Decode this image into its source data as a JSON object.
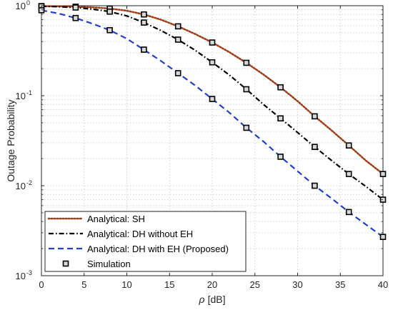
{
  "chart_data": {
    "type": "line",
    "title": "",
    "xlabel_symbol": "ρ",
    "xlabel_unit": "[dB]",
    "ylabel": "Outage Probability",
    "x_scale": "linear",
    "y_scale": "log",
    "xlim": [
      0,
      40
    ],
    "ylim": [
      0.001,
      1
    ],
    "grid": true,
    "legend_position": "bottom-left",
    "x_ticks": [
      "0",
      "5",
      "10",
      "15",
      "20",
      "25",
      "30",
      "35",
      "40"
    ],
    "y_ticks": [
      {
        "base": "10",
        "exp": "-3"
      },
      {
        "base": "10",
        "exp": "-2"
      },
      {
        "base": "10",
        "exp": "-1"
      },
      {
        "base": "10",
        "exp": "0"
      }
    ],
    "series": [
      {
        "name": "Analytical: SH",
        "style": "dotted",
        "color": "#a0401a",
        "x": [
          0,
          2,
          4,
          6,
          8,
          10,
          12,
          14,
          16,
          18,
          20,
          22,
          24,
          26,
          28,
          30,
          32,
          34,
          36,
          38,
          40
        ],
        "y": [
          0.99,
          0.985,
          0.975,
          0.96,
          0.93,
          0.88,
          0.8,
          0.7,
          0.59,
          0.485,
          0.39,
          0.305,
          0.232,
          0.172,
          0.124,
          0.087,
          0.059,
          0.041,
          0.028,
          0.019,
          0.0135
        ]
      },
      {
        "name": "Analytical: DH without EH",
        "style": "dashdot",
        "color": "#000000",
        "x": [
          0,
          2,
          4,
          6,
          8,
          10,
          12,
          14,
          16,
          18,
          20,
          22,
          24,
          26,
          28,
          30,
          32,
          34,
          36,
          38,
          40
        ],
        "y": [
          0.985,
          0.975,
          0.955,
          0.915,
          0.86,
          0.77,
          0.65,
          0.53,
          0.42,
          0.32,
          0.235,
          0.17,
          0.118,
          0.08,
          0.056,
          0.039,
          0.027,
          0.019,
          0.0135,
          0.0098,
          0.007
        ]
      },
      {
        "name": "Analytical: DH with EH (Proposed)",
        "style": "dashed",
        "color": "#1f3fd0",
        "x": [
          0,
          2,
          4,
          6,
          8,
          10,
          12,
          14,
          16,
          18,
          20,
          22,
          24,
          26,
          28,
          30,
          32,
          34,
          36,
          38,
          40
        ],
        "y": [
          0.89,
          0.82,
          0.73,
          0.63,
          0.535,
          0.43,
          0.325,
          0.243,
          0.178,
          0.13,
          0.092,
          0.065,
          0.044,
          0.031,
          0.021,
          0.0145,
          0.01,
          0.0072,
          0.0051,
          0.0037,
          0.0027
        ]
      }
    ],
    "simulation": {
      "name": "Simulation",
      "marker": "square",
      "points": [
        {
          "x": 0,
          "y": 0.99
        },
        {
          "x": 4,
          "y": 0.975
        },
        {
          "x": 8,
          "y": 0.93
        },
        {
          "x": 12,
          "y": 0.8
        },
        {
          "x": 16,
          "y": 0.59
        },
        {
          "x": 20,
          "y": 0.39
        },
        {
          "x": 24,
          "y": 0.232
        },
        {
          "x": 28,
          "y": 0.124
        },
        {
          "x": 32,
          "y": 0.059
        },
        {
          "x": 36,
          "y": 0.028
        },
        {
          "x": 40,
          "y": 0.0135
        },
        {
          "x": 0,
          "y": 0.985
        },
        {
          "x": 4,
          "y": 0.955
        },
        {
          "x": 8,
          "y": 0.86
        },
        {
          "x": 12,
          "y": 0.65
        },
        {
          "x": 16,
          "y": 0.42
        },
        {
          "x": 20,
          "y": 0.235
        },
        {
          "x": 24,
          "y": 0.118
        },
        {
          "x": 28,
          "y": 0.056
        },
        {
          "x": 32,
          "y": 0.027
        },
        {
          "x": 36,
          "y": 0.0135
        },
        {
          "x": 40,
          "y": 0.007
        },
        {
          "x": 0,
          "y": 0.89
        },
        {
          "x": 4,
          "y": 0.73
        },
        {
          "x": 8,
          "y": 0.535
        },
        {
          "x": 12,
          "y": 0.325
        },
        {
          "x": 16,
          "y": 0.178
        },
        {
          "x": 20,
          "y": 0.092
        },
        {
          "x": 24,
          "y": 0.044
        },
        {
          "x": 28,
          "y": 0.021
        },
        {
          "x": 32,
          "y": 0.01
        },
        {
          "x": 36,
          "y": 0.0051
        },
        {
          "x": 40,
          "y": 0.0027
        }
      ]
    }
  }
}
